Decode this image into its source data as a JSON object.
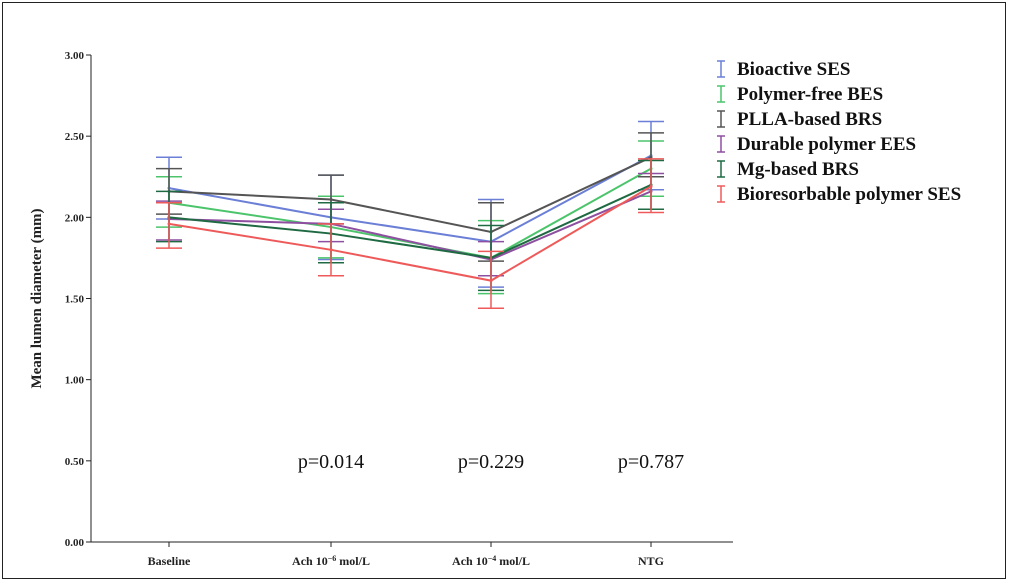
{
  "chart_data": {
    "type": "line",
    "ylabel": "Mean lumen diameter (mm)",
    "xlabel": "",
    "ylim": [
      0,
      3.0
    ],
    "yticks": [
      "0.00",
      "0.50",
      "1.00",
      "1.50",
      "2.00",
      "2.50",
      "3.00"
    ],
    "categories": [
      "Baseline",
      "Ach 10",
      "Ach 10",
      "NTG"
    ],
    "category_sup": [
      "",
      "−6",
      "−4",
      ""
    ],
    "category_suffix": [
      "",
      " mol/L",
      " mol/L",
      ""
    ],
    "series": [
      {
        "name": "Bioactive SES",
        "color": "#6b7fd6",
        "values": [
          2.18,
          2.0,
          1.85,
          2.38
        ],
        "lower": [
          1.99,
          1.74,
          1.57,
          2.17
        ],
        "upper": [
          2.37,
          2.26,
          2.11,
          2.59
        ]
      },
      {
        "name": "Polymer-free BES",
        "color": "#4cc46b",
        "values": [
          2.09,
          1.94,
          1.75,
          2.3
        ],
        "lower": [
          1.94,
          1.75,
          1.53,
          2.13
        ],
        "upper": [
          2.25,
          2.13,
          1.98,
          2.47
        ]
      },
      {
        "name": "PLLA-based BRS",
        "color": "#555555",
        "values": [
          2.16,
          2.11,
          1.91,
          2.37
        ],
        "lower": [
          2.02,
          1.96,
          1.73,
          2.25
        ],
        "upper": [
          2.3,
          2.26,
          2.09,
          2.52
        ]
      },
      {
        "name": "Durable polymer EES",
        "color": "#8e4fa0",
        "values": [
          1.99,
          1.96,
          1.74,
          2.16
        ],
        "lower": [
          1.86,
          1.85,
          1.64,
          2.05
        ],
        "upper": [
          2.1,
          2.05,
          1.85,
          2.27
        ]
      },
      {
        "name": "Mg-based BRS",
        "color": "#1f6a43",
        "values": [
          2.0,
          1.9,
          1.75,
          2.2
        ],
        "lower": [
          1.85,
          1.72,
          1.55,
          2.05
        ],
        "upper": [
          2.16,
          2.09,
          1.95,
          2.35
        ]
      },
      {
        "name": "Bioresorbable polymer SES",
        "color": "#ee5a5a",
        "values": [
          1.96,
          1.8,
          1.61,
          2.19
        ],
        "lower": [
          1.81,
          1.64,
          1.44,
          2.03
        ],
        "upper": [
          2.09,
          1.96,
          1.79,
          2.36
        ]
      }
    ],
    "annotations": [
      {
        "text": "p=0.014",
        "category_index": 1,
        "y": 0.5
      },
      {
        "text": "p=0.229",
        "category_index": 2,
        "y": 0.5
      },
      {
        "text": "p=0.787",
        "category_index": 3,
        "y": 0.5
      }
    ],
    "legend_position": "top-right",
    "grid": false
  }
}
